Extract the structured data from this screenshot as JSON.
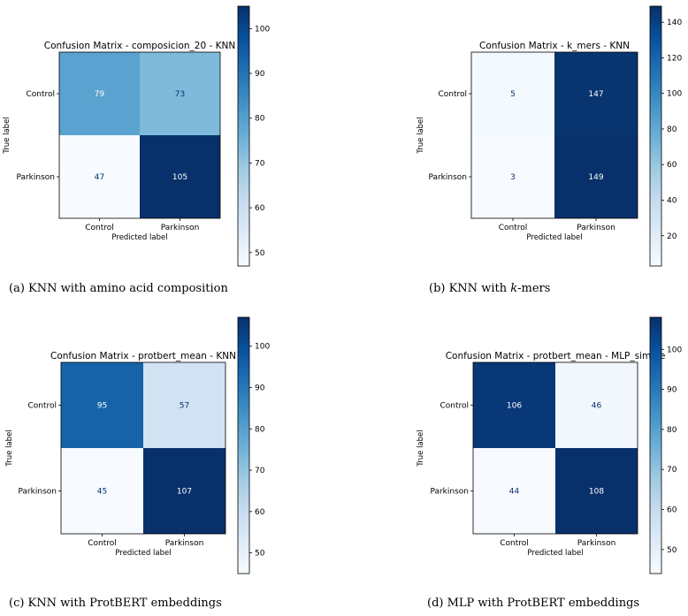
{
  "chart_data": [
    {
      "type": "heatmap",
      "title": "Confusion Matrix - composicion_20 - KNN",
      "xlabel": "Predicted label",
      "ylabel": "True label",
      "x_categories": [
        "Control",
        "Parkinson"
      ],
      "y_categories": [
        "Control",
        "Parkinson"
      ],
      "values": [
        [
          79,
          73
        ],
        [
          47,
          105
        ]
      ],
      "colormap": "Blues",
      "colorbar_ticks": [
        50,
        60,
        70,
        80,
        90,
        100
      ],
      "vmin": 47,
      "vmax": 105,
      "caption": "(a) KNN with amino acid composition"
    },
    {
      "type": "heatmap",
      "title": "Confusion Matrix - k_mers - KNN",
      "xlabel": "Predicted label",
      "ylabel": "True label",
      "x_categories": [
        "Control",
        "Parkinson"
      ],
      "y_categories": [
        "Control",
        "Parkinson"
      ],
      "values": [
        [
          5,
          147
        ],
        [
          3,
          149
        ]
      ],
      "colormap": "Blues",
      "colorbar_ticks": [
        20,
        40,
        60,
        80,
        100,
        120,
        140
      ],
      "vmin": 3,
      "vmax": 149,
      "caption_prefix": "(b) KNN with ",
      "caption_italic": "k",
      "caption_suffix": "-mers"
    },
    {
      "type": "heatmap",
      "title": "Confusion Matrix - protbert_mean - KNN",
      "xlabel": "Predicted label",
      "ylabel": "True label",
      "x_categories": [
        "Control",
        "Parkinson"
      ],
      "y_categories": [
        "Control",
        "Parkinson"
      ],
      "values": [
        [
          95,
          57
        ],
        [
          45,
          107
        ]
      ],
      "colormap": "Blues",
      "colorbar_ticks": [
        50,
        60,
        70,
        80,
        90,
        100
      ],
      "vmin": 45,
      "vmax": 107,
      "caption": "(c) KNN with ProtBERT embeddings"
    },
    {
      "type": "heatmap",
      "title": "Confusion Matrix - protbert_mean - MLP_simple",
      "xlabel": "Predicted label",
      "ylabel": "True label",
      "x_categories": [
        "Control",
        "Parkinson"
      ],
      "y_categories": [
        "Control",
        "Parkinson"
      ],
      "values": [
        [
          106,
          46
        ],
        [
          44,
          108
        ]
      ],
      "colormap": "Blues",
      "colorbar_ticks": [
        50,
        60,
        70,
        80,
        90,
        100
      ],
      "vmin": 44,
      "vmax": 108,
      "caption": "(d) MLP with ProtBERT embeddings"
    }
  ]
}
